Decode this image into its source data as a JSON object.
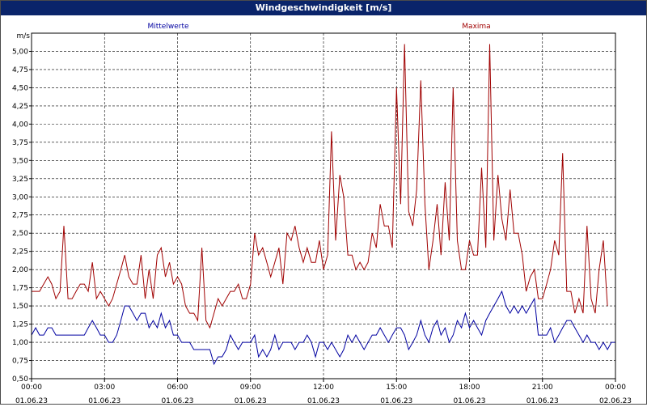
{
  "window": {
    "title": "Windgeschwindigkeit [m/s]"
  },
  "chart_data": {
    "type": "line",
    "title": "Windgeschwindigkeit [m/s]",
    "ylabel": "m/s",
    "ylim": [
      0.5,
      5.25
    ],
    "xlim": [
      0,
      24
    ],
    "grid": true,
    "y_ticks": [
      "0,50",
      "0,75",
      "1,00",
      "1,25",
      "1,50",
      "1,75",
      "2,00",
      "2,25",
      "2,50",
      "2,75",
      "3,00",
      "3,25",
      "3,50",
      "3,75",
      "4,00",
      "4,25",
      "4,50",
      "4,75",
      "5,00"
    ],
    "x_ticks": [
      {
        "time": "00:00",
        "date": "01.06.23"
      },
      {
        "time": "03:00",
        "date": "01.06.23"
      },
      {
        "time": "06:00",
        "date": "01.06.23"
      },
      {
        "time": "09:00",
        "date": "01.06.23"
      },
      {
        "time": "12:00",
        "date": "01.06.23"
      },
      {
        "time": "15:00",
        "date": "01.06.23"
      },
      {
        "time": "18:00",
        "date": "01.06.23"
      },
      {
        "time": "21:00",
        "date": "01.06.23"
      },
      {
        "time": "00:00",
        "date": "02.06.23"
      }
    ],
    "series": [
      {
        "name": "Mittelwerte",
        "color": "#0000a0",
        "points": [
          [
            0,
            1.1
          ],
          [
            0.17,
            1.2
          ],
          [
            0.33,
            1.1
          ],
          [
            0.5,
            1.1
          ],
          [
            0.67,
            1.2
          ],
          [
            0.83,
            1.2
          ],
          [
            1,
            1.1
          ],
          [
            1.33,
            1.1
          ],
          [
            1.67,
            1.1
          ],
          [
            2,
            1.1
          ],
          [
            2.17,
            1.1
          ],
          [
            2.33,
            1.2
          ],
          [
            2.5,
            1.3
          ],
          [
            2.67,
            1.2
          ],
          [
            2.83,
            1.1
          ],
          [
            3,
            1.1
          ],
          [
            3.17,
            1.0
          ],
          [
            3.33,
            1.0
          ],
          [
            3.5,
            1.1
          ],
          [
            3.67,
            1.3
          ],
          [
            3.83,
            1.5
          ],
          [
            4,
            1.5
          ],
          [
            4.17,
            1.4
          ],
          [
            4.33,
            1.3
          ],
          [
            4.5,
            1.4
          ],
          [
            4.67,
            1.4
          ],
          [
            4.83,
            1.2
          ],
          [
            5,
            1.3
          ],
          [
            5.17,
            1.2
          ],
          [
            5.33,
            1.4
          ],
          [
            5.5,
            1.2
          ],
          [
            5.67,
            1.3
          ],
          [
            5.83,
            1.1
          ],
          [
            6,
            1.1
          ],
          [
            6.17,
            1.0
          ],
          [
            6.33,
            1.0
          ],
          [
            6.5,
            1.0
          ],
          [
            6.67,
            0.9
          ],
          [
            6.83,
            0.9
          ],
          [
            7,
            0.9
          ],
          [
            7.17,
            0.9
          ],
          [
            7.33,
            0.9
          ],
          [
            7.5,
            0.7
          ],
          [
            7.67,
            0.8
          ],
          [
            7.83,
            0.8
          ],
          [
            8,
            0.9
          ],
          [
            8.17,
            1.1
          ],
          [
            8.33,
            1.0
          ],
          [
            8.5,
            0.9
          ],
          [
            8.67,
            1.0
          ],
          [
            8.83,
            1.0
          ],
          [
            9,
            1.0
          ],
          [
            9.17,
            1.1
          ],
          [
            9.33,
            0.8
          ],
          [
            9.5,
            0.9
          ],
          [
            9.67,
            0.8
          ],
          [
            9.83,
            0.9
          ],
          [
            10,
            1.1
          ],
          [
            10.17,
            0.9
          ],
          [
            10.33,
            1.0
          ],
          [
            10.5,
            1.0
          ],
          [
            10.67,
            1.0
          ],
          [
            10.83,
            0.9
          ],
          [
            11,
            1.0
          ],
          [
            11.17,
            1.0
          ],
          [
            11.33,
            1.1
          ],
          [
            11.5,
            1.0
          ],
          [
            11.67,
            0.8
          ],
          [
            11.83,
            1.0
          ],
          [
            12,
            1.0
          ],
          [
            12.17,
            0.9
          ],
          [
            12.33,
            1.0
          ],
          [
            12.5,
            0.9
          ],
          [
            12.67,
            0.8
          ],
          [
            12.83,
            0.9
          ],
          [
            13,
            1.1
          ],
          [
            13.17,
            1.0
          ],
          [
            13.33,
            1.1
          ],
          [
            13.5,
            1.0
          ],
          [
            13.67,
            0.9
          ],
          [
            13.83,
            1.0
          ],
          [
            14,
            1.1
          ],
          [
            14.17,
            1.1
          ],
          [
            14.33,
            1.2
          ],
          [
            14.5,
            1.1
          ],
          [
            14.67,
            1.0
          ],
          [
            14.83,
            1.1
          ],
          [
            15,
            1.2
          ],
          [
            15.17,
            1.2
          ],
          [
            15.33,
            1.1
          ],
          [
            15.5,
            0.9
          ],
          [
            15.67,
            1.0
          ],
          [
            15.83,
            1.1
          ],
          [
            16,
            1.3
          ],
          [
            16.17,
            1.1
          ],
          [
            16.33,
            1.0
          ],
          [
            16.5,
            1.2
          ],
          [
            16.67,
            1.3
          ],
          [
            16.83,
            1.1
          ],
          [
            17,
            1.2
          ],
          [
            17.17,
            1.0
          ],
          [
            17.33,
            1.1
          ],
          [
            17.5,
            1.3
          ],
          [
            17.67,
            1.2
          ],
          [
            17.83,
            1.4
          ],
          [
            18,
            1.2
          ],
          [
            18.17,
            1.3
          ],
          [
            18.33,
            1.2
          ],
          [
            18.5,
            1.1
          ],
          [
            18.67,
            1.3
          ],
          [
            18.83,
            1.4
          ],
          [
            19,
            1.5
          ],
          [
            19.17,
            1.6
          ],
          [
            19.33,
            1.7
          ],
          [
            19.5,
            1.5
          ],
          [
            19.67,
            1.4
          ],
          [
            19.83,
            1.5
          ],
          [
            20,
            1.4
          ],
          [
            20.17,
            1.5
          ],
          [
            20.33,
            1.4
          ],
          [
            20.5,
            1.5
          ],
          [
            20.67,
            1.6
          ],
          [
            20.83,
            1.1
          ],
          [
            21,
            1.1
          ],
          [
            21.17,
            1.1
          ],
          [
            21.33,
            1.2
          ],
          [
            21.5,
            1.0
          ],
          [
            21.67,
            1.1
          ],
          [
            21.83,
            1.2
          ],
          [
            22,
            1.3
          ],
          [
            22.17,
            1.3
          ],
          [
            22.33,
            1.2
          ],
          [
            22.5,
            1.1
          ],
          [
            22.67,
            1.0
          ],
          [
            22.83,
            1.1
          ],
          [
            23,
            1.0
          ],
          [
            23.17,
            1.0
          ],
          [
            23.33,
            0.9
          ],
          [
            23.5,
            1.0
          ],
          [
            23.67,
            0.9
          ],
          [
            23.83,
            1.0
          ],
          [
            24,
            1.0
          ]
        ]
      },
      {
        "name": "Maxima",
        "color": "#a00000",
        "points": [
          [
            0,
            1.7
          ],
          [
            0.17,
            1.7
          ],
          [
            0.33,
            1.7
          ],
          [
            0.5,
            1.8
          ],
          [
            0.67,
            1.9
          ],
          [
            0.83,
            1.8
          ],
          [
            1,
            1.6
          ],
          [
            1.17,
            1.7
          ],
          [
            1.33,
            2.6
          ],
          [
            1.5,
            1.6
          ],
          [
            1.67,
            1.6
          ],
          [
            1.83,
            1.7
          ],
          [
            2,
            1.8
          ],
          [
            2.17,
            1.8
          ],
          [
            2.33,
            1.7
          ],
          [
            2.5,
            2.1
          ],
          [
            2.67,
            1.6
          ],
          [
            2.83,
            1.7
          ],
          [
            3,
            1.6
          ],
          [
            3.17,
            1.5
          ],
          [
            3.33,
            1.6
          ],
          [
            3.5,
            1.8
          ],
          [
            3.67,
            2.0
          ],
          [
            3.83,
            2.2
          ],
          [
            4,
            1.9
          ],
          [
            4.17,
            1.8
          ],
          [
            4.33,
            1.8
          ],
          [
            4.5,
            2.2
          ],
          [
            4.67,
            1.6
          ],
          [
            4.83,
            2.0
          ],
          [
            5,
            1.6
          ],
          [
            5.17,
            2.2
          ],
          [
            5.33,
            2.3
          ],
          [
            5.5,
            1.9
          ],
          [
            5.67,
            2.1
          ],
          [
            5.83,
            1.8
          ],
          [
            6,
            1.9
          ],
          [
            6.17,
            1.8
          ],
          [
            6.33,
            1.5
          ],
          [
            6.5,
            1.4
          ],
          [
            6.67,
            1.4
          ],
          [
            6.83,
            1.3
          ],
          [
            7,
            2.3
          ],
          [
            7.17,
            1.3
          ],
          [
            7.33,
            1.2
          ],
          [
            7.5,
            1.4
          ],
          [
            7.67,
            1.6
          ],
          [
            7.83,
            1.5
          ],
          [
            8,
            1.6
          ],
          [
            8.17,
            1.7
          ],
          [
            8.33,
            1.7
          ],
          [
            8.5,
            1.8
          ],
          [
            8.67,
            1.6
          ],
          [
            8.83,
            1.6
          ],
          [
            9,
            1.8
          ],
          [
            9.17,
            2.5
          ],
          [
            9.33,
            2.2
          ],
          [
            9.5,
            2.3
          ],
          [
            9.67,
            2.1
          ],
          [
            9.83,
            1.9
          ],
          [
            10,
            2.1
          ],
          [
            10.17,
            2.3
          ],
          [
            10.33,
            1.8
          ],
          [
            10.5,
            2.5
          ],
          [
            10.67,
            2.4
          ],
          [
            10.83,
            2.6
          ],
          [
            11,
            2.3
          ],
          [
            11.17,
            2.1
          ],
          [
            11.33,
            2.3
          ],
          [
            11.5,
            2.1
          ],
          [
            11.67,
            2.1
          ],
          [
            11.83,
            2.4
          ],
          [
            12,
            2.0
          ],
          [
            12.17,
            2.2
          ],
          [
            12.33,
            3.9
          ],
          [
            12.5,
            2.4
          ],
          [
            12.67,
            3.3
          ],
          [
            12.83,
            3.0
          ],
          [
            13,
            2.2
          ],
          [
            13.17,
            2.2
          ],
          [
            13.33,
            2.0
          ],
          [
            13.5,
            2.1
          ],
          [
            13.67,
            2.0
          ],
          [
            13.83,
            2.1
          ],
          [
            14,
            2.5
          ],
          [
            14.17,
            2.3
          ],
          [
            14.33,
            2.9
          ],
          [
            14.5,
            2.6
          ],
          [
            14.67,
            2.6
          ],
          [
            14.83,
            2.3
          ],
          [
            15,
            4.5
          ],
          [
            15.17,
            2.9
          ],
          [
            15.33,
            5.1
          ],
          [
            15.5,
            2.8
          ],
          [
            15.67,
            2.6
          ],
          [
            15.83,
            3.1
          ],
          [
            16,
            4.6
          ],
          [
            16.17,
            2.9
          ],
          [
            16.33,
            2.0
          ],
          [
            16.5,
            2.4
          ],
          [
            16.67,
            2.9
          ],
          [
            16.83,
            2.2
          ],
          [
            17,
            3.2
          ],
          [
            17.17,
            2.4
          ],
          [
            17.33,
            4.5
          ],
          [
            17.5,
            2.4
          ],
          [
            17.67,
            2.0
          ],
          [
            17.83,
            2.0
          ],
          [
            18,
            2.4
          ],
          [
            18.17,
            2.2
          ],
          [
            18.33,
            2.2
          ],
          [
            18.5,
            3.4
          ],
          [
            18.67,
            2.3
          ],
          [
            18.83,
            5.1
          ],
          [
            19,
            2.4
          ],
          [
            19.17,
            3.3
          ],
          [
            19.33,
            2.7
          ],
          [
            19.5,
            2.4
          ],
          [
            19.67,
            3.1
          ],
          [
            19.83,
            2.5
          ],
          [
            20,
            2.5
          ],
          [
            20.17,
            2.2
          ],
          [
            20.33,
            1.7
          ],
          [
            20.5,
            1.9
          ],
          [
            20.67,
            2.0
          ],
          [
            20.83,
            1.6
          ],
          [
            21,
            1.6
          ],
          [
            21.17,
            1.8
          ],
          [
            21.33,
            2.0
          ],
          [
            21.5,
            2.4
          ],
          [
            21.67,
            2.2
          ],
          [
            21.83,
            3.6
          ],
          [
            22,
            1.7
          ],
          [
            22.17,
            1.7
          ],
          [
            22.33,
            1.4
          ],
          [
            22.5,
            1.6
          ],
          [
            22.67,
            1.4
          ],
          [
            22.83,
            2.6
          ],
          [
            23,
            1.6
          ],
          [
            23.17,
            1.4
          ],
          [
            23.33,
            2.0
          ],
          [
            23.5,
            2.4
          ],
          [
            23.67,
            1.5
          ]
        ]
      }
    ]
  }
}
